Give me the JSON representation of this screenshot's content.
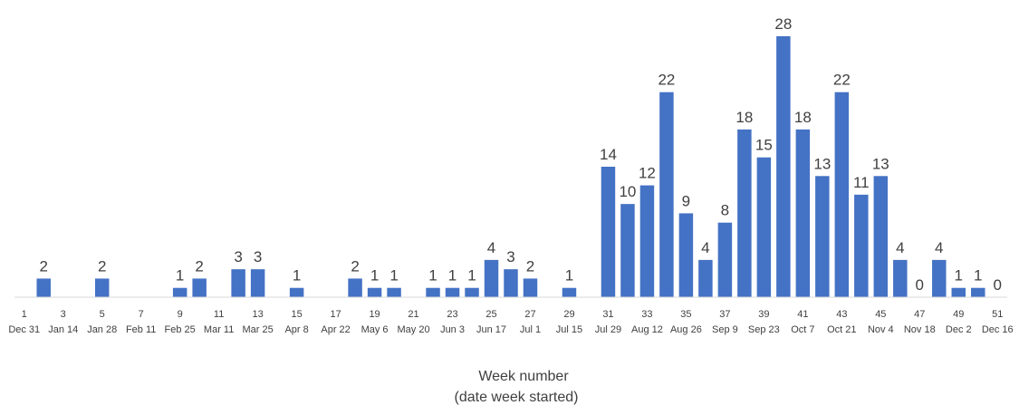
{
  "chart_data": {
    "type": "bar",
    "xlabel_lines": [
      "Week number",
      "(date week started)"
    ],
    "ylim": [
      0,
      28
    ],
    "grid": false,
    "legend": "none",
    "bar_color": "#4472C4",
    "label_color": "#404040",
    "categories": [
      1,
      2,
      3,
      4,
      5,
      6,
      7,
      8,
      9,
      10,
      11,
      12,
      13,
      14,
      15,
      16,
      17,
      18,
      19,
      20,
      21,
      22,
      23,
      24,
      25,
      26,
      27,
      28,
      29,
      30,
      31,
      32,
      33,
      34,
      35,
      36,
      37,
      38,
      39,
      40,
      41,
      42,
      43,
      44,
      45,
      46,
      47,
      48,
      49,
      50,
      51
    ],
    "values": [
      null,
      2,
      null,
      null,
      2,
      null,
      null,
      null,
      1,
      2,
      null,
      3,
      3,
      null,
      1,
      null,
      null,
      2,
      1,
      1,
      null,
      1,
      1,
      1,
      4,
      3,
      2,
      null,
      1,
      null,
      14,
      10,
      12,
      22,
      9,
      4,
      8,
      18,
      15,
      28,
      18,
      13,
      22,
      11,
      13,
      4,
      0,
      4,
      1,
      1,
      0
    ],
    "week_numbers": [
      "1",
      "3",
      "5",
      "7",
      "9",
      "11",
      "13",
      "15",
      "17",
      "19",
      "21",
      "23",
      "25",
      "27",
      "29",
      "31",
      "33",
      "35",
      "37",
      "39",
      "41",
      "43",
      "45",
      "47",
      "49",
      "51"
    ],
    "week_dates": [
      "Dec 31",
      "Jan 14",
      "Jan 28",
      "Feb 11",
      "Feb 25",
      "Mar 11",
      "Mar 25",
      "Apr 8",
      "Apr 22",
      "May 6",
      "May 20",
      "Jun 3",
      "Jun 17",
      "Jul 1",
      "Jul 15",
      "Jul 29",
      "Aug 12",
      "Aug 26",
      "Sep 9",
      "Sep 23",
      "Oct 7",
      "Oct 21",
      "Nov 4",
      "Nov 18",
      "Dec 2",
      "Dec 16"
    ]
  }
}
